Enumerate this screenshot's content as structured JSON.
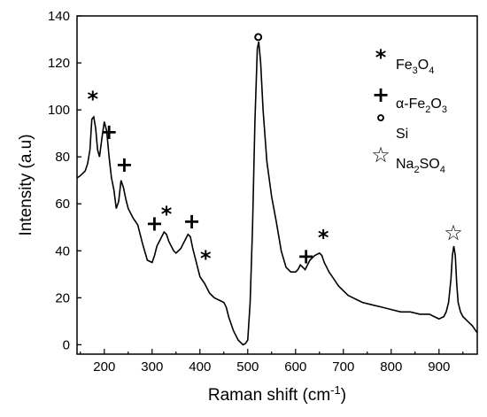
{
  "chart_data": {
    "type": "line",
    "title": "",
    "xlabel": "Raman shift (cm",
    "xlabel_sup": "-1",
    "xlabel_close": ")",
    "ylabel": "Intensity (a.u)",
    "xlim": [
      143,
      980
    ],
    "ylim": [
      -4,
      140
    ],
    "xticks": [
      200,
      300,
      400,
      500,
      600,
      700,
      800,
      900
    ],
    "yticks": [
      0,
      20,
      40,
      60,
      80,
      100,
      120,
      140
    ],
    "grid": false,
    "legend_position": "top-right",
    "series": [
      {
        "x": [
          143,
          150,
          160,
          165,
          170,
          174,
          178,
          182,
          186,
          190,
          195,
          200,
          205,
          210,
          215,
          220,
          225,
          230,
          235,
          240,
          245,
          250,
          260,
          270,
          280,
          290,
          300,
          305,
          310,
          315,
          320,
          325,
          330,
          335,
          340,
          345,
          350,
          360,
          370,
          375,
          380,
          385,
          390,
          400,
          410,
          420,
          430,
          440,
          450,
          455,
          460,
          470,
          480,
          490,
          495,
          500,
          505,
          510,
          515,
          520,
          523,
          527,
          532,
          540,
          550,
          560,
          570,
          580,
          590,
          600,
          605,
          610,
          615,
          620,
          625,
          630,
          640,
          650,
          655,
          660,
          670,
          680,
          690,
          700,
          710,
          720,
          730,
          740,
          760,
          780,
          800,
          820,
          840,
          860,
          880,
          890,
          900,
          910,
          915,
          920,
          925,
          928,
          931,
          934,
          937,
          940,
          945,
          950,
          960,
          970,
          980
        ],
        "y": [
          71,
          72,
          74,
          77,
          83,
          96,
          97,
          92,
          83,
          80,
          88,
          95,
          91,
          80,
          71,
          66,
          58,
          61,
          70,
          67,
          62,
          58,
          54,
          51,
          43,
          36,
          35,
          38,
          42,
          44,
          46,
          48,
          47,
          44,
          42,
          40,
          39,
          41,
          45,
          47,
          46,
          41,
          37,
          29,
          26,
          22,
          20,
          19,
          18,
          16,
          12,
          6,
          2,
          0,
          0.5,
          2,
          18,
          50,
          95,
          126,
          129,
          120,
          100,
          78,
          63,
          52,
          40,
          33,
          31,
          31,
          32,
          34,
          33,
          32,
          34,
          36,
          38,
          39,
          38,
          35,
          31,
          28,
          25,
          23,
          21,
          20,
          19,
          18,
          17,
          16,
          15,
          14,
          14,
          13,
          13,
          12,
          11,
          12,
          14,
          18,
          28,
          38,
          42,
          38,
          26,
          18,
          14,
          12,
          10,
          8,
          5
        ]
      }
    ],
    "annotations": [
      {
        "symbol": "*",
        "x": 176,
        "y": 105
      },
      {
        "symbol": "+",
        "x": 210,
        "y": 91
      },
      {
        "symbol": "+",
        "x": 242,
        "y": 77
      },
      {
        "symbol": "+",
        "x": 305,
        "y": 52
      },
      {
        "symbol": "*",
        "x": 330,
        "y": 56
      },
      {
        "symbol": "+",
        "x": 383,
        "y": 53
      },
      {
        "symbol": "*",
        "x": 412,
        "y": 37
      },
      {
        "symbol": "o",
        "x": 522,
        "y": 131
      },
      {
        "symbol": "+",
        "x": 622,
        "y": 38
      },
      {
        "symbol": "*",
        "x": 658,
        "y": 46
      },
      {
        "symbol": "☆",
        "x": 930,
        "y": 48
      }
    ],
    "legend": [
      {
        "symbol": "*",
        "base": "Fe",
        "sub1": "3",
        "mid": "O",
        "sub2": "4"
      },
      {
        "symbol": "+",
        "base": "α-Fe",
        "sub1": "2",
        "mid": "O",
        "sub2": "3"
      },
      {
        "symbol": "°",
        "base": "Si",
        "sub1": "",
        "mid": "",
        "sub2": ""
      },
      {
        "symbol": "☆",
        "base": "Na",
        "sub1": "2",
        "mid": "SO",
        "sub2": "4"
      }
    ]
  }
}
